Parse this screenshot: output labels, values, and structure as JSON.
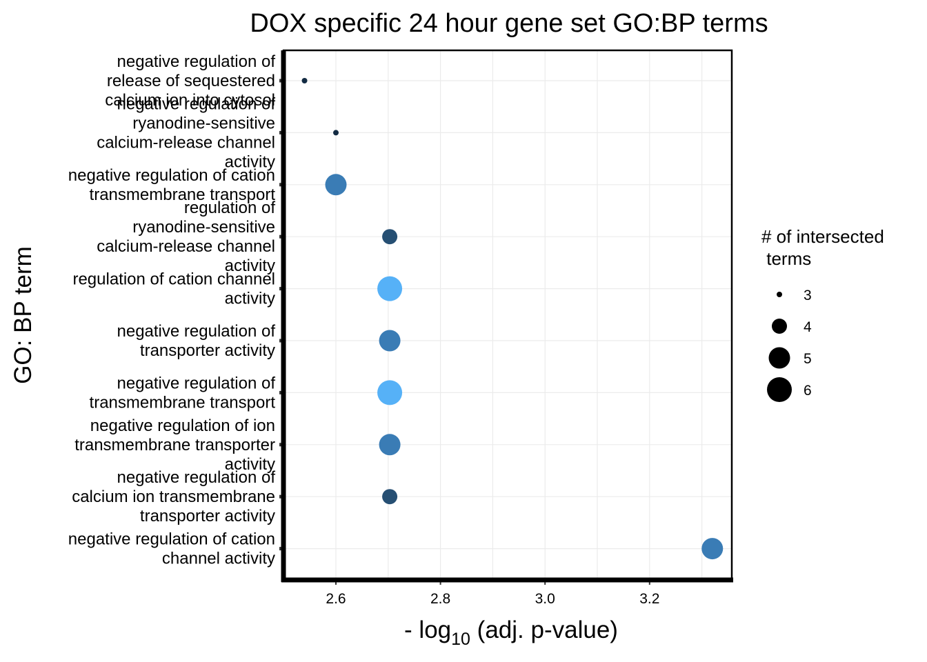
{
  "chart_data": {
    "type": "scatter",
    "title": "DOX specific 24 hour gene set GO:BP terms",
    "xlabel_prefix": "- log",
    "xlabel_subscript": "10",
    "xlabel_suffix": " (adj. p-value)",
    "ylabel": "GO: BP term",
    "xlim": [
      2.5,
      3.36
    ],
    "x_ticks": [
      2.6,
      2.8,
      3.0,
      3.2
    ],
    "x_tick_labels": [
      "2.6",
      "2.8",
      "3.0",
      "3.2"
    ],
    "grid": true,
    "categories": [
      [
        "negative regulation of",
        "release of sequestered",
        "calcium ion into cytosol"
      ],
      [
        "negative regulation of",
        "ryanodine-sensitive",
        "calcium-release channel",
        "activity"
      ],
      [
        "negative regulation of cation",
        "transmembrane transport"
      ],
      [
        "regulation of",
        "ryanodine-sensitive",
        "calcium-release channel",
        "activity"
      ],
      [
        "regulation of cation channel",
        "activity"
      ],
      [
        "negative regulation of",
        "transporter activity"
      ],
      [
        "negative regulation of",
        "transmembrane transport"
      ],
      [
        "negative regulation of ion",
        "transmembrane transporter",
        "activity"
      ],
      [
        "negative regulation of",
        "calcium ion transmembrane",
        "transporter activity"
      ],
      [
        "negative regulation of cation",
        "channel activity"
      ]
    ],
    "points": [
      {
        "x": 2.54,
        "size": 3,
        "color": "#132B43"
      },
      {
        "x": 2.6,
        "size": 3,
        "color": "#132B43"
      },
      {
        "x": 2.6,
        "size": 5,
        "color": "#3A7CB5"
      },
      {
        "x": 2.703,
        "size": 4,
        "color": "#264F73"
      },
      {
        "x": 2.703,
        "size": 6,
        "color": "#56B1F7"
      },
      {
        "x": 2.703,
        "size": 5,
        "color": "#3A7CB5"
      },
      {
        "x": 2.703,
        "size": 6,
        "color": "#56B1F7"
      },
      {
        "x": 2.703,
        "size": 5,
        "color": "#3A7CB5"
      },
      {
        "x": 2.703,
        "size": 4,
        "color": "#264F73"
      },
      {
        "x": 3.32,
        "size": 5,
        "color": "#3A7CB5"
      }
    ],
    "legend": {
      "title_lines": [
        "# of intersected",
        " terms"
      ],
      "position": "right",
      "sizes": [
        3,
        4,
        5,
        6
      ],
      "labels": [
        "3",
        "4",
        "5",
        "6"
      ]
    }
  }
}
